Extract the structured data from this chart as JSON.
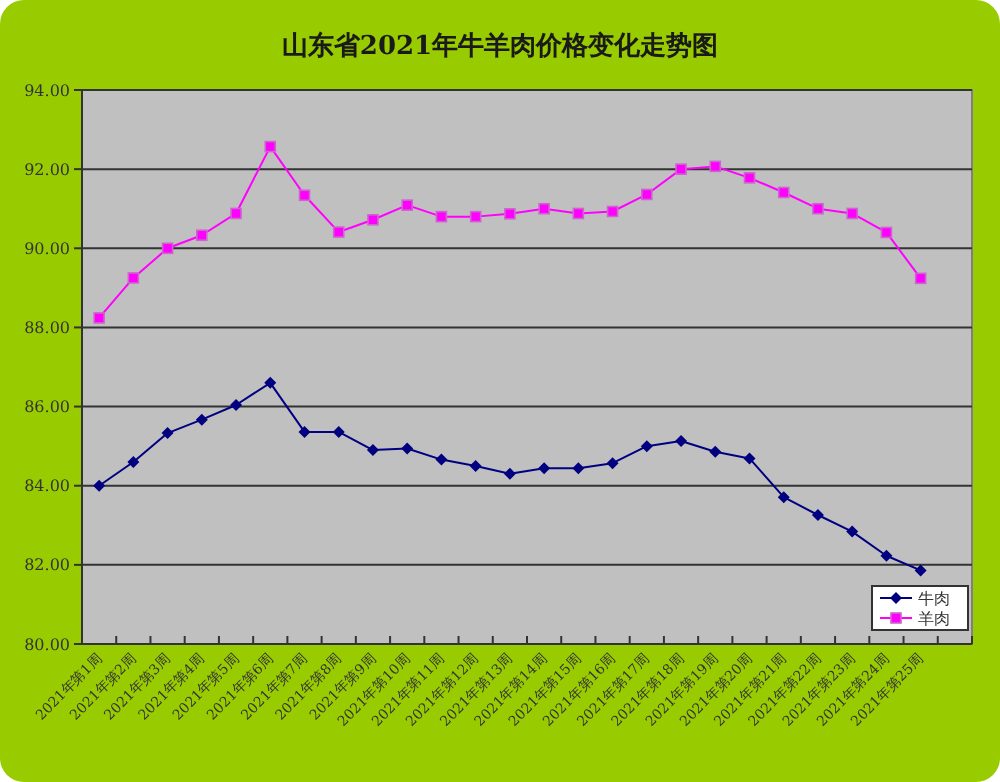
{
  "chart_data": {
    "type": "line",
    "title": "山东省2021年牛羊肉价格变化走势图",
    "categories": [
      "2021年第1周",
      "2021年第2周",
      "2021年第3周",
      "2021年第4周",
      "2021年第5周",
      "2021年第6周",
      "2021年第7周",
      "2021年第8周",
      "2021年第9周",
      "2021年第10周",
      "2021年第11周",
      "2021年第12周",
      "2021年第13周",
      "2021年第14周",
      "2021年第15周",
      "2021年第16周",
      "2021年第17周",
      "2021年第18周",
      "2021年第19周",
      "2021年第20周",
      "2021年第21周",
      "2021年第22周",
      "2021年第23周",
      "2021年第24周",
      "2021年第25周",
      null
    ],
    "series": [
      {
        "name": "牛肉",
        "color": "#000080",
        "marker": "diamond",
        "values": [
          84.0,
          84.6,
          85.33,
          85.67,
          86.04,
          86.6,
          85.36,
          85.36,
          84.9,
          84.94,
          84.66,
          84.5,
          84.3,
          84.44,
          84.44,
          84.57,
          85.0,
          85.13,
          84.86,
          84.69,
          83.71,
          83.26,
          82.84,
          82.23,
          81.86,
          null
        ]
      },
      {
        "name": "羊肉",
        "color": "#ff00ff",
        "marker": "square",
        "values": [
          88.24,
          89.25,
          90.0,
          90.33,
          90.88,
          92.57,
          91.34,
          90.41,
          90.72,
          91.09,
          90.8,
          90.8,
          90.87,
          91.0,
          90.88,
          90.93,
          91.36,
          92.0,
          92.07,
          91.78,
          91.41,
          91.0,
          90.88,
          90.4,
          89.24,
          null
        ]
      }
    ],
    "ylim": [
      80,
      94
    ],
    "yticks": [
      {
        "value": 80,
        "label": "80.00"
      },
      {
        "value": 82,
        "label": "82.00"
      },
      {
        "value": 84,
        "label": "84.00"
      },
      {
        "value": 86,
        "label": "86.00"
      },
      {
        "value": 88,
        "label": "88.00"
      },
      {
        "value": 90,
        "label": "90.00"
      },
      {
        "value": 92,
        "label": "92.00"
      },
      {
        "value": 94,
        "label": "94.00"
      }
    ],
    "grid": "y",
    "legend": "bottom right",
    "line_style": "solid"
  }
}
